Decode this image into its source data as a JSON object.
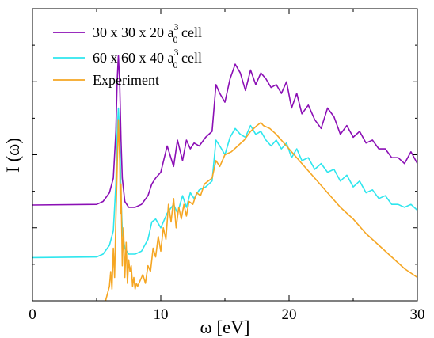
{
  "chart_data": {
    "type": "line",
    "title": "",
    "xlabel": "ω  [eV]",
    "ylabel": "I (ω)",
    "xlim": [
      0,
      30
    ],
    "ylim": [
      0,
      1
    ],
    "xticks": [
      0,
      10,
      20,
      30
    ],
    "xtick_labels": [
      "0",
      "10",
      "20",
      "30"
    ],
    "yticks_shown": false,
    "grid": false,
    "legend_position": "top-left",
    "series": [
      {
        "name": "30 x 30 x 20 a0^3 cell",
        "legend": {
          "prefix": "30 x 30 x 20 a",
          "sub": "0",
          "sup": "3",
          "suffix": " cell"
        },
        "color": "#8b0fb5",
        "x": [
          0,
          5.0,
          5.5,
          6.0,
          6.3,
          6.5,
          6.6,
          6.7,
          6.8,
          6.9,
          7.0,
          7.2,
          7.5,
          8.0,
          8.5,
          9.0,
          9.3,
          9.6,
          10.0,
          10.5,
          11.0,
          11.3,
          11.7,
          12.0,
          12.3,
          12.6,
          13.0,
          13.5,
          14.0,
          14.3,
          14.6,
          15.0,
          15.4,
          15.8,
          16.2,
          16.6,
          17.0,
          17.4,
          17.8,
          18.2,
          18.6,
          19.0,
          19.4,
          19.8,
          20.2,
          20.6,
          21.0,
          21.5,
          22.0,
          22.5,
          23.0,
          23.5,
          24.0,
          24.5,
          25.0,
          25.5,
          26.0,
          26.5,
          27.0,
          27.5,
          28.0,
          28.5,
          29.0,
          29.5,
          30.0
        ],
        "y": [
          0.328,
          0.33,
          0.34,
          0.37,
          0.42,
          0.58,
          0.75,
          0.84,
          0.74,
          0.55,
          0.42,
          0.34,
          0.32,
          0.32,
          0.33,
          0.36,
          0.4,
          0.42,
          0.44,
          0.53,
          0.46,
          0.55,
          0.48,
          0.55,
          0.52,
          0.54,
          0.53,
          0.56,
          0.58,
          0.74,
          0.71,
          0.68,
          0.76,
          0.81,
          0.78,
          0.72,
          0.79,
          0.74,
          0.78,
          0.76,
          0.73,
          0.74,
          0.71,
          0.75,
          0.66,
          0.71,
          0.64,
          0.67,
          0.62,
          0.59,
          0.66,
          0.63,
          0.57,
          0.6,
          0.56,
          0.58,
          0.54,
          0.55,
          0.52,
          0.52,
          0.49,
          0.49,
          0.47,
          0.51,
          0.47
        ]
      },
      {
        "name": "60 x 60 x 40 a0^3 cell",
        "legend": {
          "prefix": "60 x 60 x 40 a",
          "sub": "0",
          "sup": "3",
          "suffix": " cell"
        },
        "color": "#2ee6ee",
        "x": [
          0,
          5.0,
          5.5,
          6.0,
          6.3,
          6.5,
          6.6,
          6.7,
          6.8,
          6.9,
          7.0,
          7.2,
          7.5,
          8.0,
          8.5,
          9.0,
          9.3,
          9.6,
          10.0,
          10.5,
          11.0,
          11.3,
          11.7,
          12.0,
          12.3,
          12.6,
          13.0,
          13.5,
          14.0,
          14.3,
          14.6,
          15.0,
          15.4,
          15.8,
          16.2,
          16.6,
          17.0,
          17.4,
          17.8,
          18.2,
          18.6,
          19.0,
          19.4,
          19.8,
          20.2,
          20.6,
          21.0,
          21.5,
          22.0,
          22.5,
          23.0,
          23.5,
          24.0,
          24.5,
          25.0,
          25.5,
          26.0,
          26.5,
          27.0,
          27.5,
          28.0,
          28.5,
          29.0,
          29.5,
          30.0
        ],
        "y": [
          0.148,
          0.15,
          0.16,
          0.19,
          0.24,
          0.4,
          0.57,
          0.66,
          0.56,
          0.36,
          0.24,
          0.18,
          0.16,
          0.16,
          0.17,
          0.21,
          0.27,
          0.28,
          0.25,
          0.3,
          0.33,
          0.3,
          0.36,
          0.32,
          0.37,
          0.35,
          0.38,
          0.39,
          0.41,
          0.55,
          0.53,
          0.5,
          0.56,
          0.59,
          0.57,
          0.56,
          0.6,
          0.57,
          0.58,
          0.55,
          0.53,
          0.55,
          0.52,
          0.54,
          0.49,
          0.52,
          0.48,
          0.49,
          0.45,
          0.47,
          0.44,
          0.45,
          0.41,
          0.43,
          0.39,
          0.41,
          0.37,
          0.38,
          0.35,
          0.36,
          0.33,
          0.33,
          0.32,
          0.33,
          0.31
        ]
      },
      {
        "name": "Experiment",
        "legend": {
          "prefix": "Experiment",
          "sub": "",
          "sup": "",
          "suffix": ""
        },
        "color": "#f5a623",
        "x": [
          5.7,
          6.0,
          6.1,
          6.2,
          6.3,
          6.4,
          6.5,
          6.6,
          6.7,
          6.8,
          6.85,
          6.9,
          7.0,
          7.1,
          7.2,
          7.3,
          7.4,
          7.5,
          7.6,
          7.7,
          7.8,
          7.9,
          8.0,
          8.1,
          8.2,
          8.4,
          8.6,
          8.8,
          9.0,
          9.2,
          9.4,
          9.6,
          9.8,
          10.0,
          10.2,
          10.4,
          10.6,
          10.8,
          11.0,
          11.2,
          11.4,
          11.6,
          11.8,
          12.0,
          12.2,
          12.5,
          12.8,
          13.1,
          13.4,
          13.7,
          14.0,
          14.3,
          14.6,
          15.0,
          15.5,
          16.0,
          16.5,
          17.0,
          17.5,
          17.8,
          18.0,
          18.5,
          19.0,
          20.0,
          21.0,
          22.0,
          23.0,
          24.0,
          25.0,
          26.0,
          27.0,
          28.0,
          29.0,
          30.0
        ],
        "y": [
          0.0,
          0.05,
          0.1,
          0.04,
          0.18,
          0.08,
          0.28,
          0.45,
          0.62,
          0.48,
          0.3,
          0.4,
          0.12,
          0.25,
          0.08,
          0.2,
          0.06,
          0.14,
          0.1,
          0.12,
          0.05,
          0.08,
          0.04,
          0.06,
          0.05,
          0.07,
          0.09,
          0.06,
          0.12,
          0.1,
          0.18,
          0.15,
          0.22,
          0.17,
          0.25,
          0.21,
          0.33,
          0.27,
          0.35,
          0.25,
          0.32,
          0.28,
          0.33,
          0.29,
          0.34,
          0.33,
          0.37,
          0.36,
          0.4,
          0.41,
          0.42,
          0.48,
          0.46,
          0.5,
          0.51,
          0.53,
          0.55,
          0.58,
          0.6,
          0.61,
          0.6,
          0.59,
          0.57,
          0.52,
          0.47,
          0.42,
          0.37,
          0.32,
          0.28,
          0.23,
          0.19,
          0.15,
          0.11,
          0.08
        ]
      }
    ]
  }
}
